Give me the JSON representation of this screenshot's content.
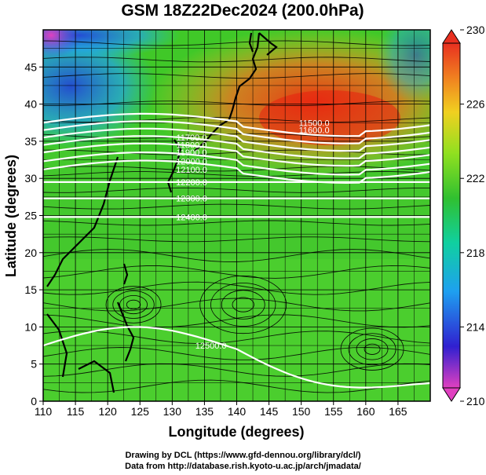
{
  "chart_data": {
    "type": "heatmap",
    "title": "GSM 18Z22Dec2024 (200.0hPa)",
    "xlabel": "Longitude (degrees)",
    "ylabel": "Latitude  (degrees)",
    "xlim": [
      110,
      170
    ],
    "ylim": [
      0,
      50
    ],
    "x_ticks": [
      "110",
      "115",
      "120",
      "125",
      "130",
      "135",
      "140",
      "145",
      "150",
      "155",
      "160",
      "165"
    ],
    "y_ticks": [
      "0",
      "5",
      "10",
      "15",
      "20",
      "25",
      "30",
      "35",
      "40",
      "45"
    ],
    "grid": true,
    "colorbar": {
      "range": [
        210,
        230
      ],
      "ticks": [
        "210",
        "214",
        "218",
        "222",
        "226",
        "230"
      ],
      "placement": "right"
    },
    "contours": [
      {
        "value": "11500.0",
        "lat": 37.5
      },
      {
        "value": "11600.0",
        "lat": 36.5
      },
      {
        "value": "11700.0",
        "lat": 35.5
      },
      {
        "value": "11800.0",
        "lat": 34.5
      },
      {
        "value": "11900.0",
        "lat": 33.5
      },
      {
        "value": "12000.0",
        "lat": 32.3
      },
      {
        "value": "12100.0",
        "lat": 31.2
      },
      {
        "value": "12200.0",
        "lat": 29.5
      },
      {
        "value": "12300.0",
        "lat": 27.3
      },
      {
        "value": "12400.0",
        "lat": 24.8
      },
      {
        "value": "12500.0",
        "lat": 7.5
      }
    ]
  },
  "credits": {
    "line1": "Drawing by DCL (https://www.gfd-dennou.org/library/dcl/)",
    "line2": "Data from http://database.rish.kyoto-u.ac.jp/arch/jmadata/"
  }
}
